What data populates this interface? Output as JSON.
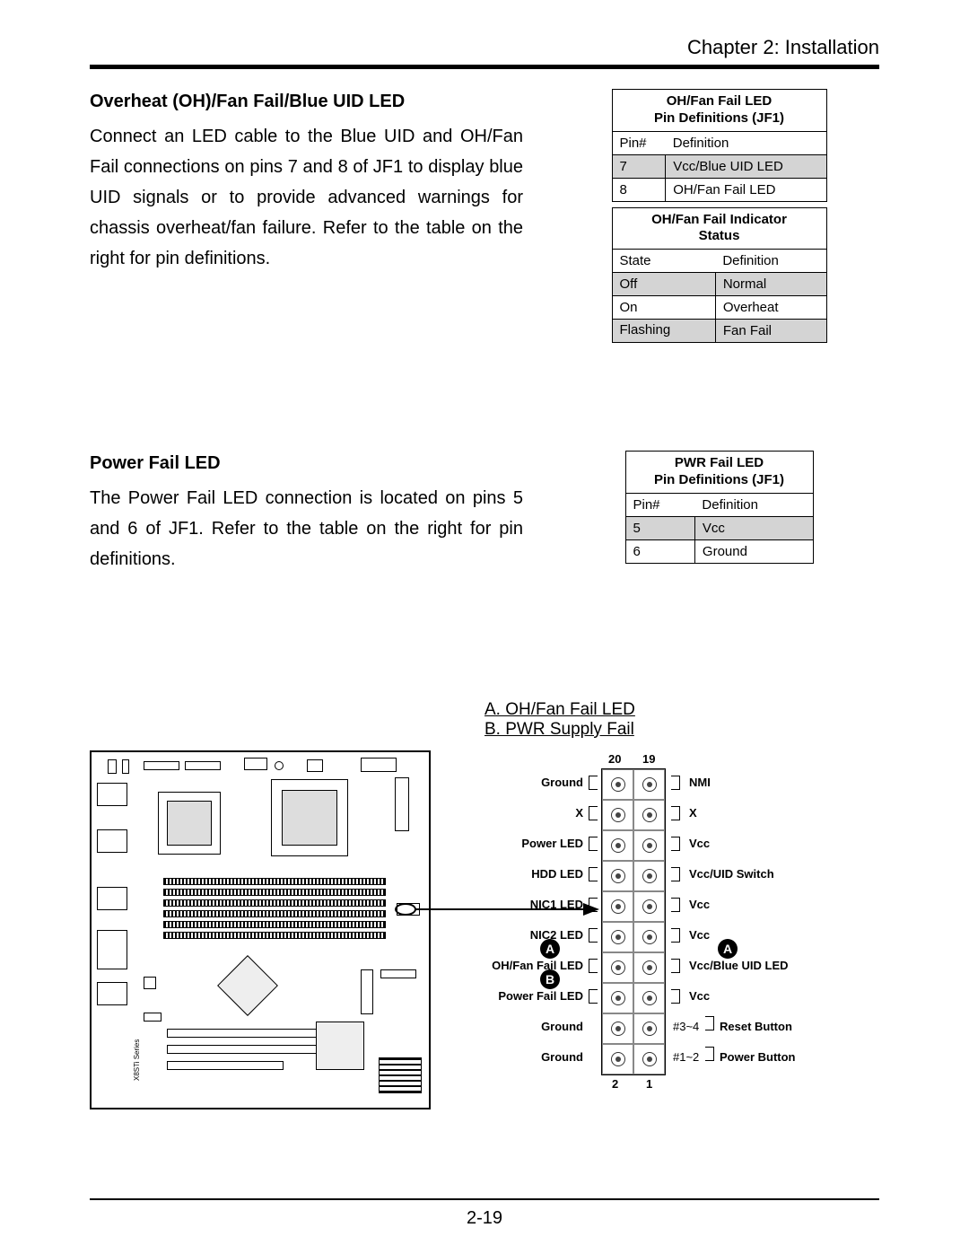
{
  "chapter": "Chapter 2: Installation",
  "section1": {
    "title": "Overheat (OH)/Fan Fail/Blue UID LED",
    "body": "Connect an LED cable to the Blue UID and OH/Fan Fail connections on pins 7 and 8 of JF1 to display blue UID signals or to provide advanced warnings for chassis overheat/fan failure. Refer to the table on the right for pin deﬁnitions."
  },
  "table1a": {
    "title": "OH/Fan Fail LED\nPin Deﬁnitions (JF1)",
    "headers": [
      "Pin#",
      "Deﬁnition"
    ],
    "rows": [
      {
        "c": [
          "7",
          "Vcc/Blue UID LED"
        ],
        "shade": true
      },
      {
        "c": [
          "8",
          "OH/Fan Fail LED"
        ],
        "shade": false
      }
    ],
    "colors": {
      "header_bg": "#ffffff",
      "shade_bg": "#d4d4d4",
      "border": "#000000"
    }
  },
  "table1b": {
    "title": "OH/Fan Fail Indicator\nStatus",
    "headers": [
      "State",
      "Deﬁnition"
    ],
    "rows": [
      {
        "c": [
          "Off",
          "Normal"
        ],
        "shade": true
      },
      {
        "c": [
          "On",
          "Overheat"
        ],
        "shade": false
      },
      {
        "c": [
          "Flashing",
          "Fan Fail"
        ],
        "shade": true
      }
    ]
  },
  "section2": {
    "title": "Power Fail LED",
    "body": "The Power Fail LED connection is located on pins 5 and 6 of JF1. Refer to the table on the right for pin deﬁnitions."
  },
  "table2": {
    "title": "PWR Fail LED\nPin Deﬁnitions (JF1)",
    "headers": [
      "Pin#",
      "Deﬁnition"
    ],
    "rows": [
      {
        "c": [
          "5",
          "Vcc"
        ],
        "shade": true
      },
      {
        "c": [
          "6",
          "Ground"
        ],
        "shade": false
      }
    ]
  },
  "legend": {
    "a": "A. OH/Fan Fail LED",
    "b": "B. PWR Supply Fail"
  },
  "jf1": {
    "top_left_num": "20",
    "top_right_num": "19",
    "bot_left_num": "2",
    "bot_right_num": "1",
    "left_labels": [
      "Ground",
      "X",
      "Power LED",
      "HDD LED",
      "NIC1 LED",
      "NIC2 LED",
      "OH/Fan Fail LED",
      "Power Fail LED",
      "Ground",
      "Ground"
    ],
    "right_labels": [
      "NMI",
      "X",
      "Vcc",
      "Vcc/UID Switch",
      "Vcc",
      "Vcc",
      "Vcc/Blue UID LED",
      "Vcc",
      "Reset Button",
      "Power Button"
    ],
    "right_prefix_8": "#3~4",
    "right_prefix_9": "#1~2",
    "marker_a": "A",
    "marker_b": "B"
  },
  "page_number": "2-19"
}
